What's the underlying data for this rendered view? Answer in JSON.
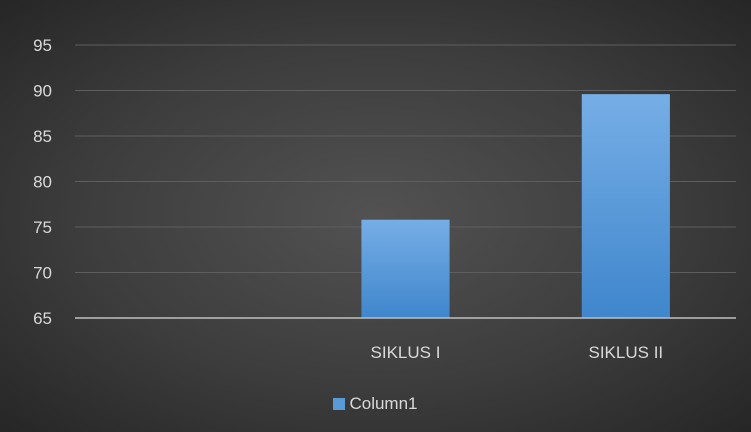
{
  "chart_data": {
    "type": "bar",
    "categories": [
      "",
      "SIKLUS I",
      "SIKLUS II"
    ],
    "series": [
      {
        "name": "Column1",
        "values": [
          null,
          75.8,
          89.6
        ],
        "color": "#5b9bd5"
      }
    ],
    "ylim": [
      65,
      95
    ],
    "yticks": [
      "65",
      "70",
      "75",
      "80",
      "85",
      "90",
      "95"
    ],
    "grid": true,
    "legend_position": "bottom"
  }
}
